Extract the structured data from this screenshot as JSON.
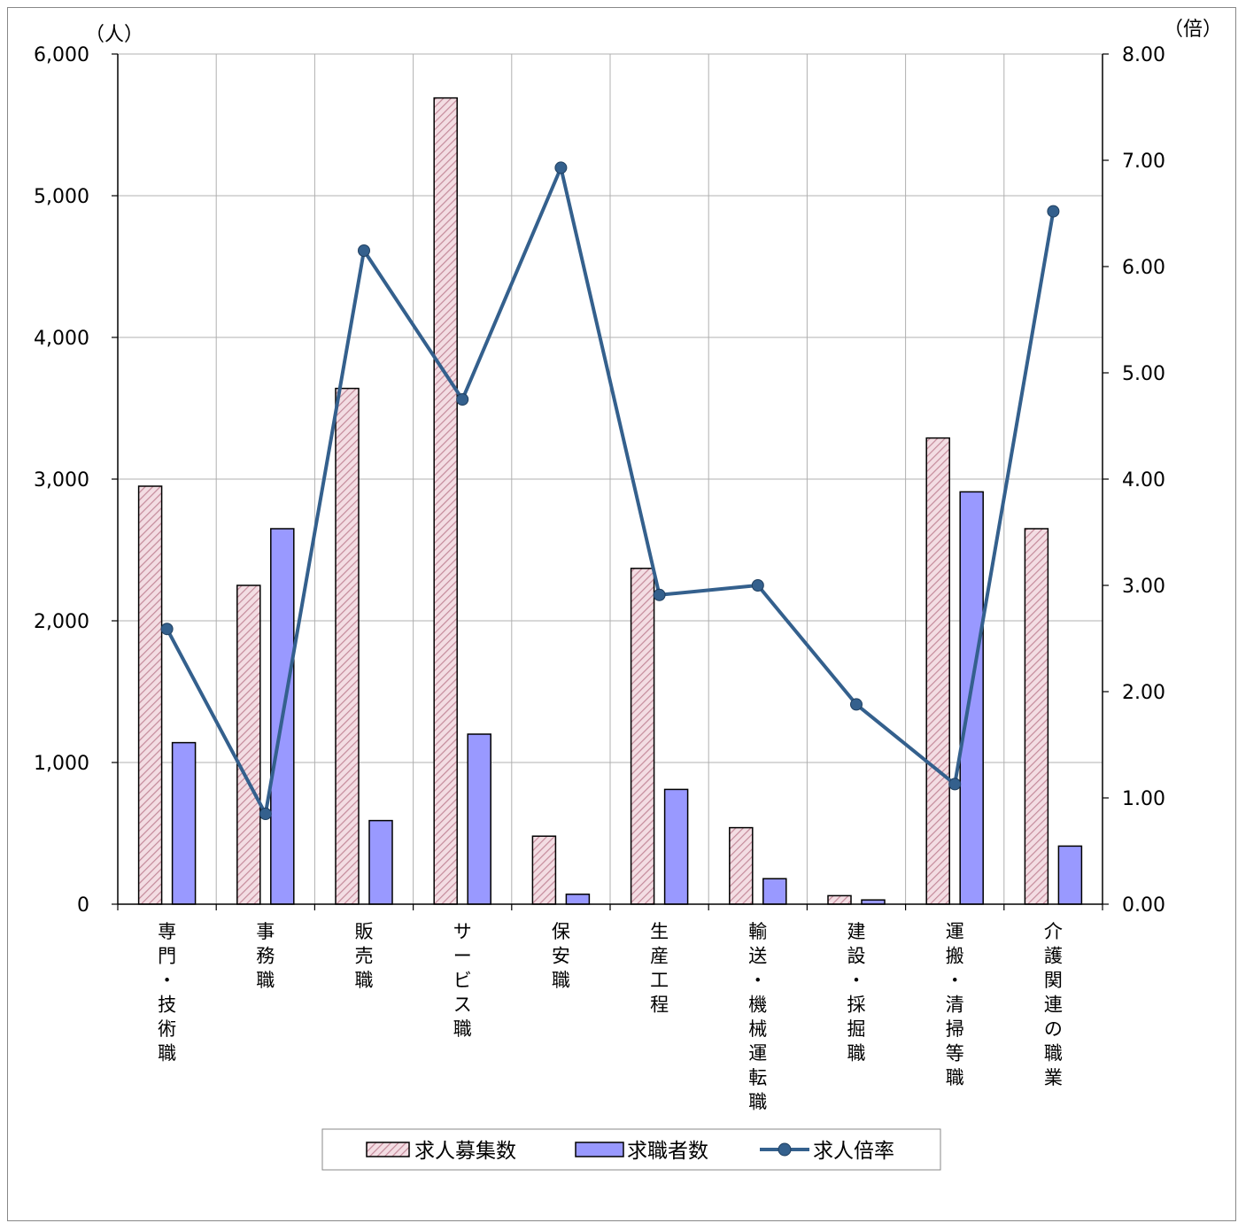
{
  "chart_data": {
    "type": "bar",
    "categories": [
      "専門・技術職",
      "事務職",
      "販売職",
      "サービス職",
      "保安職",
      "生産工程",
      "輸送・機械運転職",
      "建設・採掘職",
      "運搬・清掃等職",
      "介護関連の職業"
    ],
    "series": [
      {
        "name": "求人募集数",
        "type": "bar",
        "axis": "left",
        "pattern": "diagonal-hatch",
        "color": "#f3dde3",
        "stripe_color": "#c48a9a",
        "values": [
          2950,
          2250,
          3640,
          5690,
          480,
          2370,
          540,
          60,
          3290,
          2650
        ]
      },
      {
        "name": "求職者数",
        "type": "bar",
        "axis": "left",
        "color": "#9999ff",
        "values": [
          1140,
          2650,
          590,
          1200,
          70,
          810,
          180,
          30,
          2910,
          410
        ]
      },
      {
        "name": "求人倍率",
        "type": "line",
        "axis": "right",
        "color": "#34608d",
        "marker": "circle",
        "values": [
          2.59,
          0.85,
          6.15,
          4.75,
          6.93,
          2.91,
          3.0,
          1.88,
          1.13,
          6.52
        ]
      }
    ],
    "y_left": {
      "unit_label": "（人）",
      "ticks": [
        "0",
        "1,000",
        "2,000",
        "3,000",
        "4,000",
        "5,000",
        "6,000"
      ],
      "ylim": [
        0,
        6000
      ]
    },
    "y_right": {
      "unit_label": "（倍）",
      "ticks": [
        "0.00",
        "1.00",
        "2.00",
        "3.00",
        "4.00",
        "5.00",
        "6.00",
        "7.00",
        "8.00"
      ],
      "ylim": [
        0,
        8
      ]
    },
    "grid": true,
    "legend_position": "bottom-center"
  }
}
